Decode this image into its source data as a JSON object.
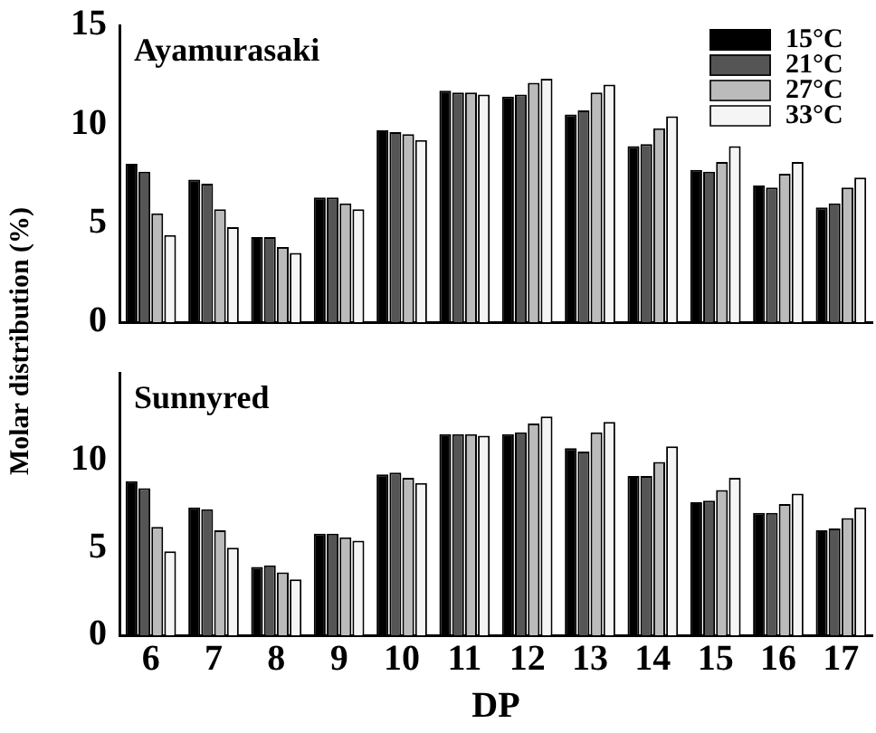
{
  "chart_data": [
    {
      "type": "bar",
      "title": "Ayamurasaki",
      "ylabel": "Molar distribution (%)",
      "categories": [
        "6",
        "7",
        "8",
        "9",
        "10",
        "11",
        "12",
        "13",
        "14",
        "15",
        "16",
        "17"
      ],
      "series": [
        {
          "name": "15°C",
          "color": "#000000",
          "values": [
            8.0,
            7.2,
            4.3,
            6.3,
            9.7,
            11.7,
            11.4,
            10.5,
            8.9,
            7.7,
            6.9,
            5.8
          ]
        },
        {
          "name": "21°C",
          "color": "#555555",
          "values": [
            7.6,
            7.0,
            4.3,
            6.3,
            9.6,
            11.6,
            11.5,
            10.7,
            9.0,
            7.6,
            6.8,
            6.0
          ]
        },
        {
          "name": "27°C",
          "color": "#bbbbbb",
          "values": [
            5.5,
            5.7,
            3.8,
            6.0,
            9.5,
            11.6,
            12.1,
            11.6,
            9.8,
            8.1,
            7.5,
            6.8
          ]
        },
        {
          "name": "33°C",
          "color": "#f5f5f5",
          "values": [
            4.4,
            4.8,
            3.5,
            5.7,
            9.2,
            11.5,
            12.3,
            12.0,
            10.4,
            8.9,
            8.1,
            7.3
          ]
        }
      ],
      "ylim": [
        0,
        15
      ],
      "yticks": [
        0,
        5,
        10,
        15
      ],
      "grid": false,
      "legend": "top right",
      "tick_labels": "y"
    },
    {
      "type": "bar",
      "title": "Sunnyred",
      "xlabel": "DP",
      "categories": [
        "6",
        "7",
        "8",
        "9",
        "10",
        "11",
        "12",
        "13",
        "14",
        "15",
        "16",
        "17"
      ],
      "series": [
        {
          "color": "#000000",
          "values": [
            8.8,
            7.3,
            3.9,
            5.8,
            9.2,
            11.5,
            11.5,
            10.7,
            9.1,
            7.6,
            7.0,
            6.0
          ]
        },
        {
          "color": "#555555",
          "values": [
            8.4,
            7.2,
            4.0,
            5.8,
            9.3,
            11.5,
            11.6,
            10.5,
            9.1,
            7.7,
            7.0,
            6.1
          ]
        },
        {
          "color": "#bbbbbb",
          "values": [
            6.2,
            6.0,
            3.6,
            5.6,
            9.0,
            11.5,
            12.1,
            11.6,
            9.9,
            8.3,
            7.5,
            6.7
          ]
        },
        {
          "color": "#f5f5f5",
          "values": [
            4.8,
            5.0,
            3.2,
            5.4,
            8.7,
            11.4,
            12.5,
            12.2,
            10.8,
            9.0,
            8.1,
            7.3
          ]
        }
      ],
      "ylim": [
        0,
        15
      ],
      "yticks": [
        0,
        5,
        10
      ],
      "grid": false,
      "legend": false
    }
  ]
}
